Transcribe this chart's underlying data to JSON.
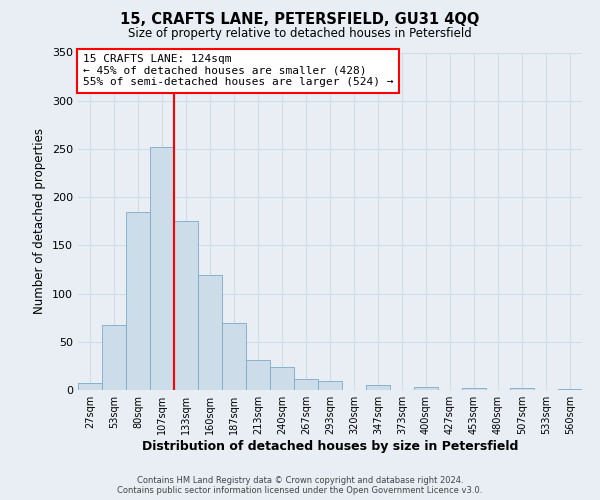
{
  "title": "15, CRAFTS LANE, PETERSFIELD, GU31 4QQ",
  "subtitle": "Size of property relative to detached houses in Petersfield",
  "xlabel": "Distribution of detached houses by size in Petersfield",
  "ylabel": "Number of detached properties",
  "bar_labels": [
    "27sqm",
    "53sqm",
    "80sqm",
    "107sqm",
    "133sqm",
    "160sqm",
    "187sqm",
    "213sqm",
    "240sqm",
    "267sqm",
    "293sqm",
    "320sqm",
    "347sqm",
    "373sqm",
    "400sqm",
    "427sqm",
    "453sqm",
    "480sqm",
    "507sqm",
    "533sqm",
    "560sqm"
  ],
  "bar_values": [
    7,
    67,
    185,
    252,
    175,
    119,
    70,
    31,
    24,
    11,
    9,
    0,
    5,
    0,
    3,
    0,
    2,
    0,
    2,
    0,
    1
  ],
  "bar_color": "#ccdce8",
  "bar_edge_color": "#7aaac8",
  "vline_x_index": 4,
  "vline_color": "red",
  "ylim": [
    0,
    350
  ],
  "yticks": [
    0,
    50,
    100,
    150,
    200,
    250,
    300,
    350
  ],
  "annotation_title": "15 CRAFTS LANE: 124sqm",
  "annotation_line1": "← 45% of detached houses are smaller (428)",
  "annotation_line2": "55% of semi-detached houses are larger (524) →",
  "annotation_box_color": "#ffffff",
  "annotation_box_edge_color": "red",
  "footer_line1": "Contains HM Land Registry data © Crown copyright and database right 2024.",
  "footer_line2": "Contains public sector information licensed under the Open Government Licence v3.0.",
  "background_color": "#e8eef4",
  "grid_color": "#d0dce8"
}
